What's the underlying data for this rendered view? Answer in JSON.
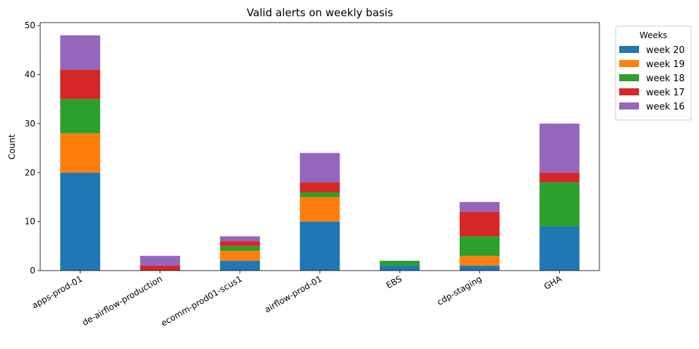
{
  "chart_data": {
    "type": "bar",
    "stacked": true,
    "title": "Valid alerts on weekly basis",
    "xlabel": "",
    "ylabel": "Count",
    "ylim": [
      0,
      50
    ],
    "yticks": [
      0,
      10,
      20,
      30,
      40,
      50
    ],
    "categories": [
      "apps-prod-01",
      "de-airflow-production",
      "ecomm-prod01-scus1",
      "airflow-prod-01",
      "EBS",
      "cdp-staging",
      "GHA"
    ],
    "series": [
      {
        "name": "week 20",
        "color": "#1f77b4",
        "values": [
          20,
          0,
          2,
          10,
          1,
          1,
          9
        ]
      },
      {
        "name": "week 19",
        "color": "#ff7f0e",
        "values": [
          8,
          0,
          2,
          5,
          0,
          2,
          0
        ]
      },
      {
        "name": "week 18",
        "color": "#2ca02c",
        "values": [
          7,
          0,
          1,
          1,
          1,
          4,
          9
        ]
      },
      {
        "name": "week 17",
        "color": "#d62728",
        "values": [
          6,
          1,
          1,
          2,
          0,
          5,
          2
        ]
      },
      {
        "name": "week 16",
        "color": "#9467bd",
        "values": [
          7,
          2,
          1,
          6,
          0,
          2,
          10
        ]
      }
    ],
    "legend": {
      "title": "Weeks",
      "placement": "upper-right-outside"
    },
    "grid": false
  }
}
